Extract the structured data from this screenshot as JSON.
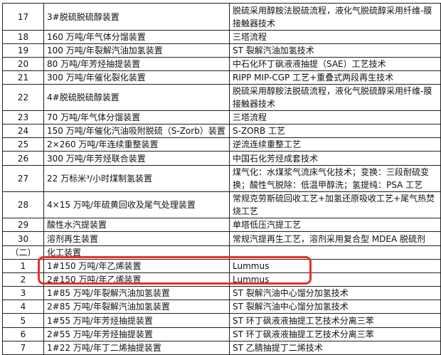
{
  "rows": [
    {
      "no": "17",
      "device": "3#脱硫脱硫醇装置",
      "tech": "脱硫采用醇胺法脱硫流程，液化气脱硫醇采用纤维-膜接触器技术",
      "h": 38
    },
    {
      "no": "18",
      "device": "160 万吨/年气体分馏装置",
      "tech": "三塔流程",
      "h": 18
    },
    {
      "no": "19",
      "device": "100 万吨/年裂解汽油加氢装置",
      "tech": "ST 裂解汽油加氢技术",
      "h": 19
    },
    {
      "no": "20",
      "device": "80 万吨/年芳烃抽提装置",
      "tech": "中石化环丁砜液液抽提（SAE）工艺技术",
      "h": 19
    },
    {
      "no": "21",
      "device": "300 万吨/年催化裂化装置",
      "tech": "RIPP MIP-CGP 工艺+重叠式两段再生技术",
      "h": 18
    },
    {
      "no": "22",
      "device": "4#脱硫脱硫醇装置",
      "tech": "脱硫采用醇胺法脱硫流程，液化气脱硫醇采用纤维-膜接触器技术",
      "h": 36
    },
    {
      "no": "23",
      "device": "70 万吨/年气体分馏装置",
      "tech": "三塔流程",
      "h": 19
    },
    {
      "no": "24",
      "device": "150 万吨/年催化汽油吸附脱硫（S-Zorb）装置",
      "tech": "S-ZORB 工艺",
      "h": 19
    },
    {
      "no": "25",
      "device": "2×260 万吨/年连续重整装置",
      "tech": "逆流连续重整工艺",
      "h": 19
    },
    {
      "no": "26",
      "device": "300 万吨/年芳烃联合装置",
      "tech": "中国石化芳烃成套技术",
      "h": 20
    },
    {
      "no": "27",
      "device": "22 万标米³/小时煤制氢装置",
      "tech": "煤气化：水煤浆气流床气化技术；变换：三段耐硫变换；酸性气脱除：低温甲醇洗；氢提纯：PSA 工艺",
      "h": 37
    },
    {
      "no": "28",
      "device": "4×15 万吨/年硫黄回收及尾气处理装置",
      "tech": "常规克劳斯硫回收工艺+加氢还原吸收工艺+尾气热焚烧工艺",
      "h": 36
    },
    {
      "no": "29",
      "device": "酸性水汽提装置",
      "tech": "单塔低压汽提工艺",
      "h": 19
    },
    {
      "no": "30",
      "device": "溶剂再生装置",
      "tech": "常规汽提再生工艺，溶剂采用复合型 MDEA 脱硫剂",
      "h": 20
    },
    {
      "no": "（二）",
      "device": "化工装置",
      "tech": "",
      "h": 18
    },
    {
      "no": "1",
      "device": "1#150 万吨/年乙烯装置",
      "tech": "Lummus",
      "h": 19
    },
    {
      "no": "2",
      "device": "2#150 万吨/年乙烯装置",
      "tech": "Lummus",
      "h": 19
    },
    {
      "no": "3",
      "device": "1#85 万吨/年裂解汽油加氢装置",
      "tech": "ST 裂解汽油中心馏分加氢技术",
      "h": 19
    },
    {
      "no": "4",
      "device": "2#85 万吨/年裂解汽油加氢装置",
      "tech": "ST 裂解汽油中心馏分加氢技术",
      "h": 19
    },
    {
      "no": "5",
      "device": "1#55 万吨/年芳烃抽提装置",
      "tech": "ST 环丁砜液液抽提工艺技术分离三苯",
      "h": 20
    },
    {
      "no": "6",
      "device": "2#55 万吨/年芳烃抽提装置",
      "tech": "ST 环丁砜液液抽提工艺技术分离三苯",
      "h": 19
    },
    {
      "no": "7",
      "device": "1#22 万吨/年丁二烯抽提装置",
      "tech": "ST 乙腈抽提丁二烯技术",
      "h": 19
    }
  ],
  "highlight_color": "#e8302a"
}
